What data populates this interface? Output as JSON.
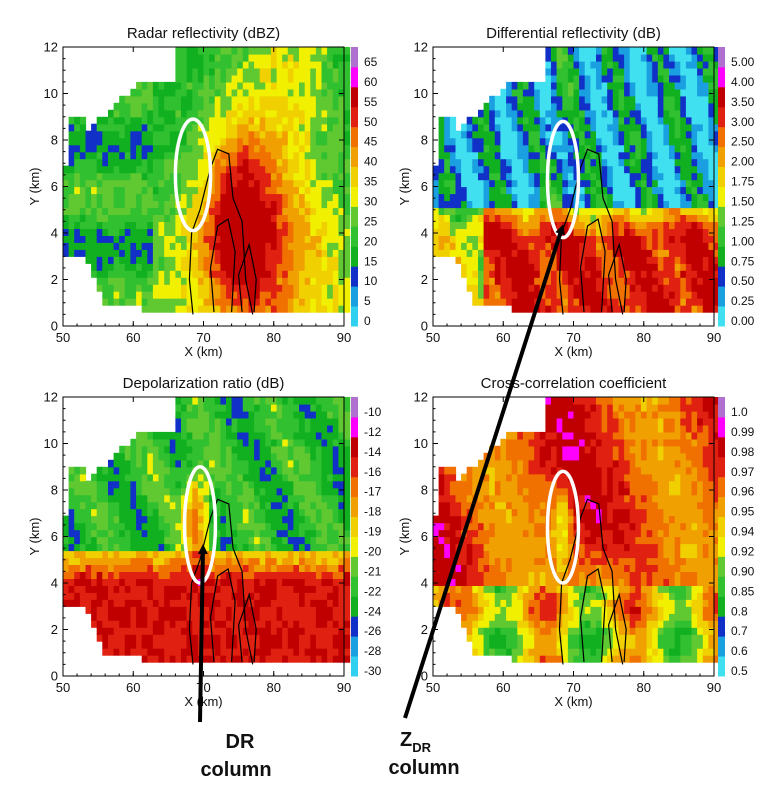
{
  "chart_data": [
    {
      "type": "heatmap",
      "title": "Radar reflectivity (dBZ)",
      "xlabel": "X (km)",
      "ylabel": "Y (km)",
      "xlim": [
        50,
        90
      ],
      "ylim": [
        0,
        12
      ],
      "xticks": [
        "50",
        "60",
        "70",
        "80",
        "90"
      ],
      "yticks": [
        "0",
        "2",
        "4",
        "6",
        "8",
        "10",
        "12"
      ],
      "colorbar": {
        "labels": [
          "0",
          "5",
          "10",
          "15",
          "20",
          "25",
          "30",
          "35",
          "40",
          "45",
          "50",
          "55",
          "60",
          "65"
        ],
        "colors": [
          "#30d0f0",
          "#1aa0e0",
          "#1030c8",
          "#10b020",
          "#30c030",
          "#60c830",
          "#f0f000",
          "#f0d000",
          "#f0a000",
          "#f07000",
          "#e02010",
          "#c00000",
          "#ff00ff",
          "#b070d0"
        ]
      },
      "annotation": {
        "ellipse_center": [
          68.5,
          6.5
        ],
        "ellipse_radius": [
          2.5,
          2.4
        ]
      }
    },
    {
      "type": "heatmap",
      "title": "Differential reflectivity (dB)",
      "xlabel": "X (km)",
      "ylabel": "Y (km)",
      "xlim": [
        50,
        90
      ],
      "ylim": [
        0,
        12
      ],
      "xticks": [
        "50",
        "60",
        "70",
        "80",
        "90"
      ],
      "yticks": [
        "0",
        "2",
        "4",
        "6",
        "8",
        "10",
        "12"
      ],
      "colorbar": {
        "labels": [
          "0.00",
          "0.25",
          "0.50",
          "0.75",
          "1.00",
          "1.25",
          "1.50",
          "1.75",
          "2.00",
          "2.50",
          "3.00",
          "3.50",
          "4.00",
          "5.00"
        ],
        "colors": [
          "#40e0f0",
          "#1aa0e0",
          "#1030c8",
          "#10b020",
          "#30c030",
          "#60c830",
          "#f0f000",
          "#f0d000",
          "#f0a000",
          "#f07000",
          "#e02010",
          "#c00000",
          "#ff00ff",
          "#b070d0"
        ]
      },
      "annotation": {
        "ellipse_center": [
          68.5,
          6.3
        ],
        "ellipse_radius": [
          2.2,
          2.5
        ]
      }
    },
    {
      "type": "heatmap",
      "title": "Depolarization ratio (dB)",
      "xlabel": "X (km)",
      "ylabel": "Y (km)",
      "xlim": [
        50,
        90
      ],
      "ylim": [
        0,
        12
      ],
      "xticks": [
        "50",
        "60",
        "70",
        "80",
        "90"
      ],
      "yticks": [
        "0",
        "2",
        "4",
        "6",
        "8",
        "10",
        "12"
      ],
      "colorbar": {
        "labels": [
          "-30",
          "-28",
          "-26",
          "-24",
          "-22",
          "-21",
          "-20",
          "-19",
          "-18",
          "-17",
          "-16",
          "-14",
          "-12",
          "-10"
        ],
        "colors": [
          "#30d0f0",
          "#1aa0e0",
          "#1030c8",
          "#10b020",
          "#30c030",
          "#60c830",
          "#f0f000",
          "#f0d000",
          "#f0a000",
          "#f07000",
          "#e02010",
          "#c00000",
          "#ff00ff",
          "#b070d0"
        ]
      },
      "annotation": {
        "ellipse_center": [
          69.5,
          6.5
        ],
        "ellipse_radius": [
          2.2,
          2.5
        ]
      }
    },
    {
      "type": "heatmap",
      "title": "Cross-correlation coefficient",
      "xlabel": "X (km)",
      "ylabel": "Y (km)",
      "xlim": [
        50,
        90
      ],
      "ylim": [
        0,
        12
      ],
      "xticks": [
        "50",
        "60",
        "70",
        "80",
        "90"
      ],
      "yticks": [
        "0",
        "2",
        "4",
        "6",
        "8",
        "10",
        "12"
      ],
      "colorbar": {
        "labels": [
          "0.5",
          "0.6",
          "0.7",
          "0.8",
          "0.85",
          "0.90",
          "0.92",
          "0.94",
          "0.95",
          "0.96",
          "0.97",
          "0.98",
          "0.99",
          "1.0"
        ],
        "colors": [
          "#40e0f0",
          "#1aa0e0",
          "#1030c8",
          "#10b020",
          "#30c030",
          "#60c830",
          "#f0f000",
          "#f0d000",
          "#f0a000",
          "#f07000",
          "#e02010",
          "#c00000",
          "#ff00ff",
          "#b070d0"
        ]
      },
      "annotation": {
        "ellipse_center": [
          68.5,
          6.4
        ],
        "ellipse_radius": [
          2.2,
          2.4
        ]
      }
    }
  ],
  "annotations": {
    "dr_label_line1": "DR",
    "dr_label_line2": "column",
    "zdr_label_main": "Z",
    "zdr_label_sub": "DR",
    "zdr_label_line2": "column"
  },
  "colors": {
    "ellipse": "#ffffff",
    "arrow": "#000000",
    "contour": "#000000"
  }
}
